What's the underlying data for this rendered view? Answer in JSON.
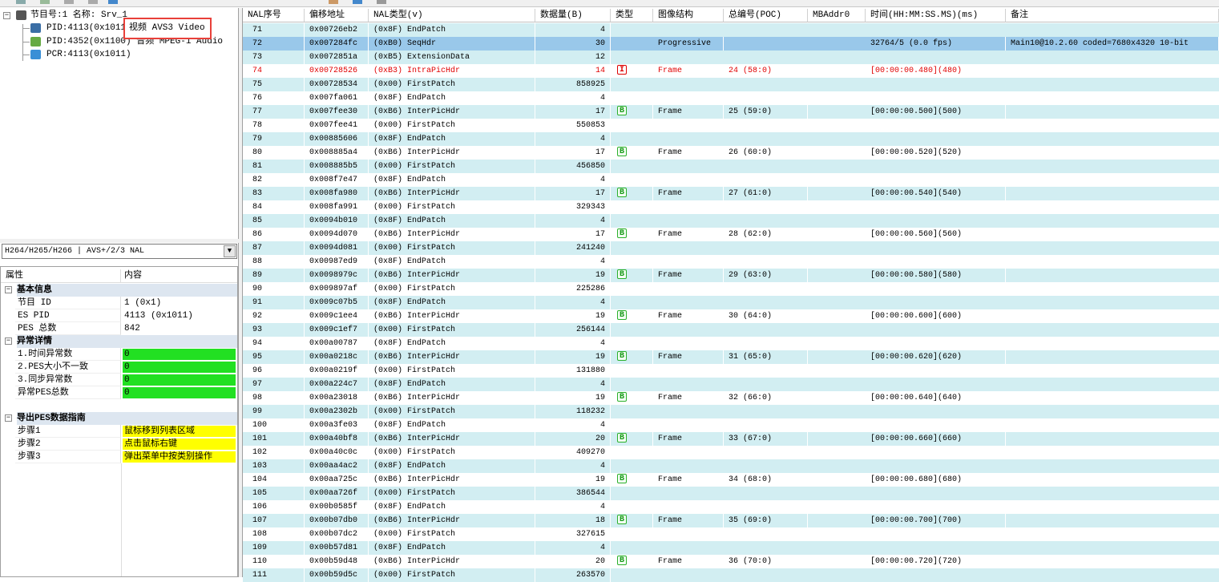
{
  "tree": {
    "items": [
      "节目号:1 名称: Srv_1",
      "PID:4113(0x1011)",
      "PID:4352(0x1100) 音频 MPEG-1 Audio",
      "PCR:4113(0x1011)"
    ],
    "tooltip": "视频 AVS3 Video"
  },
  "dropdown": "H264/H265/H266 | AVS+/2/3 NAL",
  "properties": {
    "header": [
      "属性",
      "内容"
    ],
    "sections": [
      {
        "title": "基本信息",
        "rows": [
          [
            "节目 ID",
            "1 (0x1)"
          ],
          [
            "ES PID",
            "4113 (0x1011)"
          ],
          [
            "PES 总数",
            "842"
          ]
        ]
      },
      {
        "title": "异常详情",
        "rows": [
          [
            "1.时间异常数",
            "0"
          ],
          [
            "2.PES大小不一致",
            "0"
          ],
          [
            "3.同步异常数",
            "0"
          ],
          [
            "异常PES总数",
            "0"
          ]
        ]
      },
      {
        "title": "导出PES数据指南",
        "rows": [
          [
            "步骤1",
            "鼠标移到列表区域"
          ],
          [
            "步骤2",
            "点击鼠标右键"
          ],
          [
            "步骤3",
            "弹出菜单中按类别操作"
          ]
        ]
      }
    ]
  },
  "table": {
    "columns": [
      "NAL序号",
      "偏移地址",
      "NAL类型(v)",
      "数据量(B)",
      "类型",
      "图像结构",
      "总编号(POC)",
      "MBAddr0",
      "时间(HH:MM:SS.MS)(ms)",
      "备注"
    ],
    "rows": [
      {
        "no": "71",
        "offset": "0x00726eb2",
        "nal_type": "(0x8F) EndPatch",
        "size": "4"
      },
      {
        "no": "72",
        "offset": "0x007284fc",
        "nal_type": "(0xB0) SeqHdr",
        "size": "30",
        "structure": "Progressive",
        "time": "32764/5 (0.0 fps)",
        "note": "Main10@10.2.60 coded=7680x4320 10-bit"
      },
      {
        "no": "73",
        "offset": "0x0072851a",
        "nal_type": "(0xB5) ExtensionData",
        "size": "12"
      },
      {
        "no": "74",
        "offset": "0x00728526",
        "nal_type": "(0xB3) IntraPicHdr",
        "size": "14",
        "pic_type": "I",
        "structure": "Frame",
        "poc": "24 (58:0)",
        "time": "[00:00:00.480](480)"
      },
      {
        "no": "75",
        "offset": "0x00728534",
        "nal_type": "(0x00) FirstPatch",
        "size": "858925"
      },
      {
        "no": "76",
        "offset": "0x007fa061",
        "nal_type": "(0x8F) EndPatch",
        "size": "4"
      },
      {
        "no": "77",
        "offset": "0x007fee30",
        "nal_type": "(0xB6) InterPicHdr",
        "size": "17",
        "pic_type": "B",
        "structure": "Frame",
        "poc": "25 (59:0)",
        "time": "[00:00:00.500](500)"
      },
      {
        "no": "78",
        "offset": "0x007fee41",
        "nal_type": "(0x00) FirstPatch",
        "size": "550853"
      },
      {
        "no": "79",
        "offset": "0x00885606",
        "nal_type": "(0x8F) EndPatch",
        "size": "4"
      },
      {
        "no": "80",
        "offset": "0x008885a4",
        "nal_type": "(0xB6) InterPicHdr",
        "size": "17",
        "pic_type": "B",
        "structure": "Frame",
        "poc": "26 (60:0)",
        "time": "[00:00:00.520](520)"
      },
      {
        "no": "81",
        "offset": "0x008885b5",
        "nal_type": "(0x00) FirstPatch",
        "size": "456850"
      },
      {
        "no": "82",
        "offset": "0x008f7e47",
        "nal_type": "(0x8F) EndPatch",
        "size": "4"
      },
      {
        "no": "83",
        "offset": "0x008fa980",
        "nal_type": "(0xB6) InterPicHdr",
        "size": "17",
        "pic_type": "B",
        "structure": "Frame",
        "poc": "27 (61:0)",
        "time": "[00:00:00.540](540)"
      },
      {
        "no": "84",
        "offset": "0x008fa991",
        "nal_type": "(0x00) FirstPatch",
        "size": "329343"
      },
      {
        "no": "85",
        "offset": "0x0094b010",
        "nal_type": "(0x8F) EndPatch",
        "size": "4"
      },
      {
        "no": "86",
        "offset": "0x0094d070",
        "nal_type": "(0xB6) InterPicHdr",
        "size": "17",
        "pic_type": "B",
        "structure": "Frame",
        "poc": "28 (62:0)",
        "time": "[00:00:00.560](560)"
      },
      {
        "no": "87",
        "offset": "0x0094d081",
        "nal_type": "(0x00) FirstPatch",
        "size": "241240"
      },
      {
        "no": "88",
        "offset": "0x00987ed9",
        "nal_type": "(0x8F) EndPatch",
        "size": "4"
      },
      {
        "no": "89",
        "offset": "0x0098979c",
        "nal_type": "(0xB6) InterPicHdr",
        "size": "19",
        "pic_type": "B",
        "structure": "Frame",
        "poc": "29 (63:0)",
        "time": "[00:00:00.580](580)"
      },
      {
        "no": "90",
        "offset": "0x009897af",
        "nal_type": "(0x00) FirstPatch",
        "size": "225286"
      },
      {
        "no": "91",
        "offset": "0x009c07b5",
        "nal_type": "(0x8F) EndPatch",
        "size": "4"
      },
      {
        "no": "92",
        "offset": "0x009c1ee4",
        "nal_type": "(0xB6) InterPicHdr",
        "size": "19",
        "pic_type": "B",
        "structure": "Frame",
        "poc": "30 (64:0)",
        "time": "[00:00:00.600](600)"
      },
      {
        "no": "93",
        "offset": "0x009c1ef7",
        "nal_type": "(0x00) FirstPatch",
        "size": "256144"
      },
      {
        "no": "94",
        "offset": "0x00a00787",
        "nal_type": "(0x8F) EndPatch",
        "size": "4"
      },
      {
        "no": "95",
        "offset": "0x00a0218c",
        "nal_type": "(0xB6) InterPicHdr",
        "size": "19",
        "pic_type": "B",
        "structure": "Frame",
        "poc": "31 (65:0)",
        "time": "[00:00:00.620](620)"
      },
      {
        "no": "96",
        "offset": "0x00a0219f",
        "nal_type": "(0x00) FirstPatch",
        "size": "131880"
      },
      {
        "no": "97",
        "offset": "0x00a224c7",
        "nal_type": "(0x8F) EndPatch",
        "size": "4"
      },
      {
        "no": "98",
        "offset": "0x00a23018",
        "nal_type": "(0xB6) InterPicHdr",
        "size": "19",
        "pic_type": "B",
        "structure": "Frame",
        "poc": "32 (66:0)",
        "time": "[00:00:00.640](640)"
      },
      {
        "no": "99",
        "offset": "0x00a2302b",
        "nal_type": "(0x00) FirstPatch",
        "size": "118232"
      },
      {
        "no": "100",
        "offset": "0x00a3fe03",
        "nal_type": "(0x8F) EndPatch",
        "size": "4"
      },
      {
        "no": "101",
        "offset": "0x00a40bf8",
        "nal_type": "(0xB6) InterPicHdr",
        "size": "20",
        "pic_type": "B",
        "structure": "Frame",
        "poc": "33 (67:0)",
        "time": "[00:00:00.660](660)"
      },
      {
        "no": "102",
        "offset": "0x00a40c0c",
        "nal_type": "(0x00) FirstPatch",
        "size": "409270"
      },
      {
        "no": "103",
        "offset": "0x00aa4ac2",
        "nal_type": "(0x8F) EndPatch",
        "size": "4"
      },
      {
        "no": "104",
        "offset": "0x00aa725c",
        "nal_type": "(0xB6) InterPicHdr",
        "size": "19",
        "pic_type": "B",
        "structure": "Frame",
        "poc": "34 (68:0)",
        "time": "[00:00:00.680](680)"
      },
      {
        "no": "105",
        "offset": "0x00aa726f",
        "nal_type": "(0x00) FirstPatch",
        "size": "386544"
      },
      {
        "no": "106",
        "offset": "0x00b0585f",
        "nal_type": "(0x8F) EndPatch",
        "size": "4"
      },
      {
        "no": "107",
        "offset": "0x00b07db0",
        "nal_type": "(0xB6) InterPicHdr",
        "size": "18",
        "pic_type": "B",
        "structure": "Frame",
        "poc": "35 (69:0)",
        "time": "[00:00:00.700](700)"
      },
      {
        "no": "108",
        "offset": "0x00b07dc2",
        "nal_type": "(0x00) FirstPatch",
        "size": "327615"
      },
      {
        "no": "109",
        "offset": "0x00b57d81",
        "nal_type": "(0x8F) EndPatch",
        "size": "4"
      },
      {
        "no": "110",
        "offset": "0x00b59d48",
        "nal_type": "(0xB6) InterPicHdr",
        "size": "20",
        "pic_type": "B",
        "structure": "Frame",
        "poc": "36 (70:0)",
        "time": "[00:00:00.720](720)"
      },
      {
        "no": "111",
        "offset": "0x00b59d5c",
        "nal_type": "(0x00) FirstPatch",
        "size": "263570"
      }
    ]
  }
}
